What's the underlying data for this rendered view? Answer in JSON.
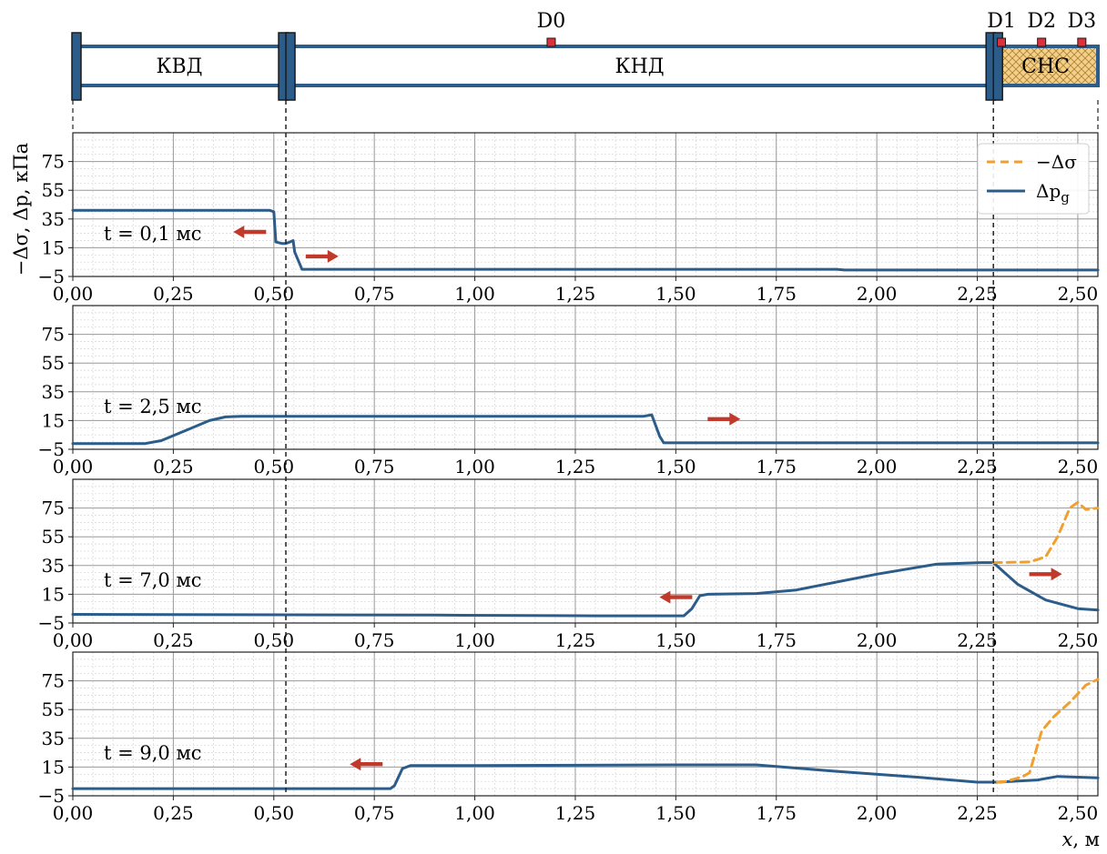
{
  "colors": {
    "pg": "#2b5c8a",
    "sigma": "#f0a030",
    "arrow": "#c0392b",
    "tube": "#2b5c8a",
    "sensor": "#e0303a",
    "cns_fill": "#f6cf86"
  },
  "diagram": {
    "sections": [
      {
        "label": "КВД",
        "from": 0.0,
        "to": 0.53
      },
      {
        "label": "КНД",
        "from": 0.53,
        "to": 2.29
      },
      {
        "label": "СНС",
        "from": 2.29,
        "to": 2.55
      }
    ],
    "flanges": [
      0.0,
      0.53,
      2.29
    ],
    "sensors": [
      {
        "label": "D0",
        "x": 1.19
      },
      {
        "label": "D1",
        "x": 2.31
      },
      {
        "label": "D2",
        "x": 2.41
      },
      {
        "label": "D3",
        "x": 2.51
      }
    ]
  },
  "chart_data": {
    "type": "line",
    "xlabel_var": "x",
    "xlabel_unit": ", м",
    "ylabel": "−Δσ, Δp, кПа",
    "xlim": [
      0.0,
      2.55
    ],
    "ylim": [
      -5,
      95
    ],
    "xticks": [
      0.0,
      0.25,
      0.5,
      0.75,
      1.0,
      1.25,
      1.5,
      1.75,
      2.0,
      2.25,
      2.5
    ],
    "xtick_labels": [
      "0,00",
      "0,25",
      "0,50",
      "0,75",
      "1,00",
      "1,25",
      "1,50",
      "1,75",
      "2,00",
      "2,25",
      "2,50"
    ],
    "yticks": [
      -5,
      15,
      35,
      55,
      75
    ],
    "ytick_labels": [
      "−5",
      "15",
      "35",
      "55",
      "75"
    ],
    "vlines": [
      0.53,
      2.29
    ],
    "legend": {
      "position": "top-right",
      "entries": [
        {
          "key": "sigma",
          "label": "−Δσ"
        },
        {
          "key": "pg",
          "label": "Δp_g"
        }
      ]
    },
    "panels": [
      {
        "label": "t = 0,1 мс",
        "pg": {
          "x": [
            0.0,
            0.49,
            0.5,
            0.505,
            0.52,
            0.53,
            0.54,
            0.548,
            0.552,
            0.57,
            1.9,
            1.92,
            2.55
          ],
          "y": [
            41,
            41,
            40,
            19,
            18,
            18,
            19,
            20,
            12,
            0,
            0,
            -0.5,
            -0.5
          ]
        },
        "sigma": null,
        "arrows": [
          {
            "x": 0.44,
            "y": 26,
            "dir": "left"
          },
          {
            "x": 0.62,
            "y": 9,
            "dir": "right"
          }
        ]
      },
      {
        "label": "t = 2,5 мс",
        "pg": {
          "x": [
            0.0,
            0.18,
            0.22,
            0.28,
            0.34,
            0.38,
            0.42,
            1.42,
            1.44,
            1.46,
            1.47,
            2.55
          ],
          "y": [
            -1,
            -1,
            1,
            8,
            15,
            17.5,
            18,
            18,
            19,
            4,
            -0.5,
            -0.5
          ]
        },
        "sigma": null,
        "arrows": [
          {
            "x": 1.62,
            "y": 16,
            "dir": "right"
          }
        ]
      },
      {
        "label": "t = 7,0 мс",
        "pg": {
          "x": [
            0.0,
            0.9,
            1.3,
            1.52,
            1.54,
            1.56,
            1.58,
            1.7,
            1.8,
            2.0,
            2.15,
            2.26,
            2.29,
            2.35,
            2.42,
            2.5,
            2.55
          ],
          "y": [
            1,
            0.5,
            0,
            0,
            5,
            14,
            15,
            15.5,
            18,
            29,
            36,
            37,
            37,
            22,
            11,
            5,
            4
          ]
        },
        "sigma": {
          "x": [
            2.29,
            2.38,
            2.42,
            2.45,
            2.48,
            2.5,
            2.52,
            2.55
          ],
          "y": [
            37,
            37.5,
            41,
            55,
            75,
            79,
            74,
            75
          ]
        },
        "arrows": [
          {
            "x": 1.5,
            "y": 13,
            "dir": "left"
          },
          {
            "x": 2.42,
            "y": 29,
            "dir": "right"
          }
        ]
      },
      {
        "label": "t = 9,0 мс",
        "pg": {
          "x": [
            0.0,
            0.79,
            0.8,
            0.82,
            0.84,
            1.0,
            1.5,
            1.7,
            1.9,
            2.1,
            2.25,
            2.3,
            2.4,
            2.45,
            2.5,
            2.55
          ],
          "y": [
            0,
            0,
            2,
            14,
            16,
            16,
            16.5,
            16.5,
            12,
            8,
            4.5,
            4.5,
            6,
            8.5,
            8,
            7.5
          ]
        },
        "sigma": {
          "x": [
            2.3,
            2.32,
            2.36,
            2.38,
            2.41,
            2.44,
            2.48,
            2.52,
            2.55
          ],
          "y": [
            4.5,
            5,
            8,
            11,
            40,
            50,
            60,
            72,
            76
          ]
        },
        "arrows": [
          {
            "x": 0.73,
            "y": 17,
            "dir": "left"
          }
        ]
      }
    ]
  }
}
